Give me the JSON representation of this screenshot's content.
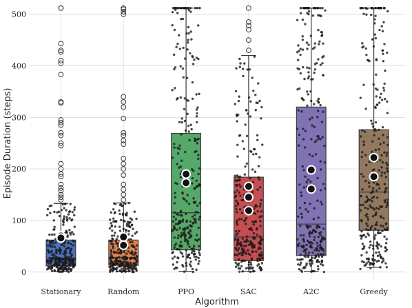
{
  "chart_data": {
    "type": "box",
    "xlabel": "Algorithm",
    "ylabel": "Episode Duration (steps)",
    "ylim": [
      -15,
      525
    ],
    "yticks": [
      0,
      100,
      200,
      300,
      400,
      500
    ],
    "grid": true,
    "categories": [
      "Stationary",
      "Random",
      "PPO",
      "SAC",
      "A2C",
      "Greedy"
    ],
    "series": [
      {
        "category": "Stationary",
        "color": "#4a72be",
        "q1": 12,
        "median": 27,
        "q3": 62,
        "whisker_low": 1,
        "whisker_high": 133,
        "mean_markers": [
          70,
          66
        ],
        "outliers": [
          140,
          145,
          150,
          158,
          163,
          170,
          185,
          190,
          200,
          210,
          245,
          250,
          265,
          270,
          285,
          290,
          295,
          328,
          330,
          383,
          405,
          410,
          427,
          430,
          443,
          512,
          512
        ],
        "jitter_range": [
          0,
          280
        ]
      },
      {
        "category": "Random",
        "color": "#dd8352",
        "q1": 13,
        "median": 28,
        "q3": 62,
        "whisker_low": 1,
        "whisker_high": 134,
        "mean_markers": [
          68,
          52
        ],
        "outliers": [
          140,
          150,
          160,
          170,
          188,
          200,
          210,
          220,
          248,
          255,
          265,
          270,
          298,
          320,
          330,
          340,
          500,
          505,
          510,
          512
        ],
        "jitter_range": [
          0,
          290
        ]
      },
      {
        "category": "PPO",
        "color": "#56a868",
        "q1": 43,
        "median": 115,
        "q3": 269,
        "whisker_low": 1,
        "whisker_high": 512,
        "mean_markers": [
          190,
          173
        ],
        "outliers": [],
        "jitter_range": [
          0,
          512
        ]
      },
      {
        "category": "SAC",
        "color": "#c44e51",
        "q1": 22,
        "median": 68,
        "q3": 184,
        "whisker_low": 1,
        "whisker_high": 420,
        "mean_markers": [
          166,
          145,
          119
        ],
        "outliers": [
          430,
          450,
          470,
          478,
          485,
          512
        ],
        "jitter_range": [
          0,
          512
        ]
      },
      {
        "category": "A2C",
        "color": "#8172b3",
        "q1": 32,
        "median": 93,
        "q3": 320,
        "whisker_low": 1,
        "whisker_high": 512,
        "mean_markers": [
          198,
          161
        ],
        "outliers": [],
        "jitter_range": [
          0,
          512
        ]
      },
      {
        "category": "Greedy",
        "color": "#937860",
        "q1": 81,
        "median": 155,
        "q3": 276,
        "whisker_low": 9,
        "whisker_high": 512,
        "mean_markers": [
          222,
          185
        ],
        "outliers": [],
        "jitter_range": [
          5,
          512
        ]
      }
    ]
  }
}
